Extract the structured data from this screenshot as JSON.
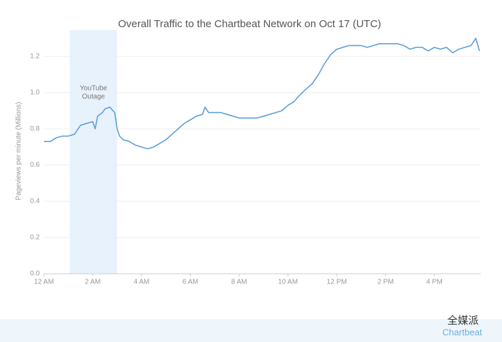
{
  "chart_data": {
    "type": "line",
    "title": "Overall Traffic to the Chartbeat Network on Oct 17 (UTC)",
    "y_label": "Pageviews per minute (Millions)",
    "x": [
      0,
      0.25,
      0.5,
      0.75,
      1.0,
      1.25,
      1.5,
      1.75,
      2.0,
      2.1,
      2.2,
      2.4,
      2.5,
      2.7,
      2.9,
      3.0,
      3.1,
      3.25,
      3.5,
      3.75,
      4.0,
      4.25,
      4.5,
      4.75,
      5.0,
      5.25,
      5.5,
      5.75,
      6.0,
      6.25,
      6.5,
      6.6,
      6.75,
      7.0,
      7.25,
      7.5,
      7.75,
      8.0,
      8.25,
      8.5,
      8.75,
      9.0,
      9.25,
      9.5,
      9.75,
      10.0,
      10.25,
      10.5,
      10.75,
      11.0,
      11.25,
      11.5,
      11.75,
      12.0,
      12.25,
      12.5,
      12.75,
      13.0,
      13.25,
      13.5,
      13.75,
      14.0,
      14.25,
      14.5,
      14.75,
      15.0,
      15.25,
      15.5,
      15.75,
      16.0,
      16.25,
      16.5,
      16.75,
      17.0,
      17.25,
      17.5,
      17.7,
      17.85
    ],
    "series": [
      {
        "name": "Pageviews",
        "color": "#5b9fd8",
        "values": [
          0.73,
          0.73,
          0.75,
          0.76,
          0.76,
          0.77,
          0.82,
          0.83,
          0.84,
          0.8,
          0.87,
          0.89,
          0.91,
          0.92,
          0.89,
          0.8,
          0.76,
          0.74,
          0.73,
          0.71,
          0.7,
          0.69,
          0.7,
          0.72,
          0.74,
          0.77,
          0.8,
          0.83,
          0.85,
          0.87,
          0.88,
          0.92,
          0.89,
          0.89,
          0.89,
          0.88,
          0.87,
          0.86,
          0.86,
          0.86,
          0.86,
          0.87,
          0.88,
          0.89,
          0.9,
          0.93,
          0.95,
          0.99,
          1.02,
          1.05,
          1.1,
          1.16,
          1.21,
          1.24,
          1.25,
          1.26,
          1.26,
          1.26,
          1.25,
          1.26,
          1.27,
          1.27,
          1.27,
          1.27,
          1.26,
          1.24,
          1.25,
          1.25,
          1.23,
          1.25,
          1.24,
          1.25,
          1.22,
          1.24,
          1.25,
          1.26,
          1.3,
          1.23
        ]
      }
    ],
    "xlim": [
      0,
      17.9
    ],
    "xticks": [
      {
        "value": 0,
        "label": "12 AM"
      },
      {
        "value": 2,
        "label": "2 AM"
      },
      {
        "value": 4,
        "label": "4 AM"
      },
      {
        "value": 6,
        "label": "6 AM"
      },
      {
        "value": 8,
        "label": "8 AM"
      },
      {
        "value": 10,
        "label": "10 AM"
      },
      {
        "value": 12,
        "label": "12 PM"
      },
      {
        "value": 14,
        "label": "2 PM"
      },
      {
        "value": 16,
        "label": "4 PM"
      }
    ],
    "ylim": [
      0,
      1.3
    ],
    "yticks": [
      {
        "value": 0,
        "label": "0.0"
      },
      0.2,
      0.4,
      0.6,
      0.8,
      {
        "value": 1,
        "label": "1.0"
      },
      1.2
    ],
    "grid": true,
    "annotation": {
      "text": [
        "YouTube",
        "Outage"
      ],
      "x_range": [
        1.06,
        3.0
      ],
      "color": "#e8f2fd"
    },
    "watermark": [
      "全媒派",
      "Chartbeat"
    ]
  }
}
